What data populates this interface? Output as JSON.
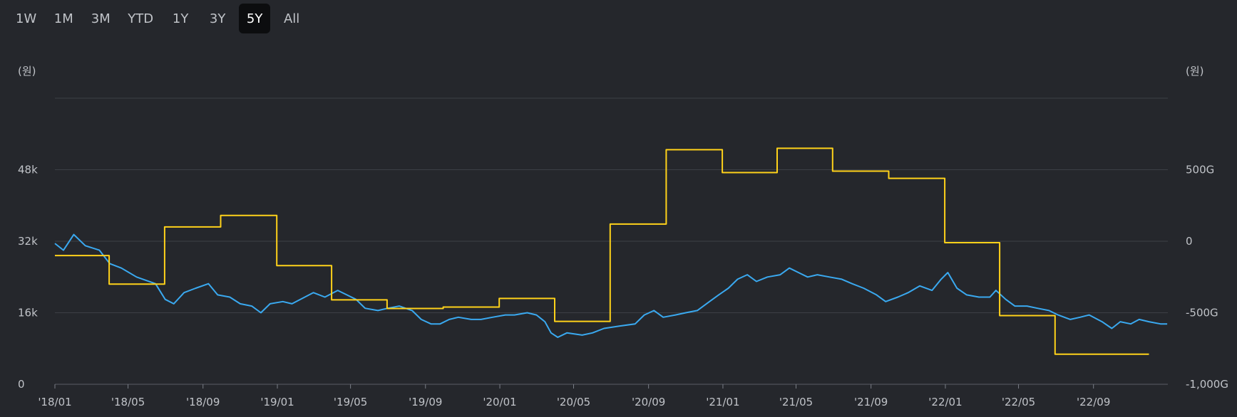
{
  "range_tabs": [
    {
      "label": "1W"
    },
    {
      "label": "1M"
    },
    {
      "label": "3M"
    },
    {
      "label": "YTD"
    },
    {
      "label": "1Y"
    },
    {
      "label": "3Y"
    },
    {
      "label": "5Y",
      "active": true
    },
    {
      "label": "All"
    }
  ],
  "colors": {
    "price": "#3aa9f0",
    "step": "#ffd21a",
    "grid": "#3d4046",
    "background": "#25272c"
  },
  "chart_data": {
    "type": "line",
    "x_tick_labels": [
      "'18/01",
      "'18/05",
      "'18/09",
      "'19/01",
      "'19/05",
      "'19/09",
      "'20/01",
      "'20/05",
      "'20/09",
      "'21/01",
      "'21/05",
      "'21/09",
      "'22/01",
      "'22/05",
      "'22/09"
    ],
    "left_axis": {
      "unit": "(원)",
      "ticks": [
        "0",
        "16k",
        "32k",
        "48k"
      ],
      "ylim": [
        0,
        64000
      ]
    },
    "right_axis": {
      "unit": "(원)",
      "ticks": [
        "-1,000G",
        "-500G",
        "0",
        "500G"
      ],
      "ylim": [
        -1000,
        1000
      ]
    },
    "grid": true,
    "series": [
      {
        "axis": "left",
        "color": "#3aa9f0",
        "points": [
          [
            "2018-01-01",
            31500
          ],
          [
            "2018-01-15",
            30000
          ],
          [
            "2018-02-01",
            33500
          ],
          [
            "2018-02-20",
            31000
          ],
          [
            "2018-03-15",
            30000
          ],
          [
            "2018-04-01",
            27000
          ],
          [
            "2018-04-20",
            26000
          ],
          [
            "2018-05-15",
            24000
          ],
          [
            "2018-06-15",
            22500
          ],
          [
            "2018-07-01",
            19000
          ],
          [
            "2018-07-15",
            18000
          ],
          [
            "2018-08-01",
            20500
          ],
          [
            "2018-08-20",
            21500
          ],
          [
            "2018-09-10",
            22500
          ],
          [
            "2018-09-25",
            20000
          ],
          [
            "2018-10-15",
            19500
          ],
          [
            "2018-11-01",
            18000
          ],
          [
            "2018-11-20",
            17500
          ],
          [
            "2018-12-05",
            16000
          ],
          [
            "2018-12-20",
            18000
          ],
          [
            "2019-01-10",
            18500
          ],
          [
            "2019-01-25",
            18000
          ],
          [
            "2019-02-15",
            19500
          ],
          [
            "2019-03-01",
            20500
          ],
          [
            "2019-03-20",
            19500
          ],
          [
            "2019-04-10",
            21000
          ],
          [
            "2019-04-25",
            20000
          ],
          [
            "2019-05-10",
            19000
          ],
          [
            "2019-05-25",
            17000
          ],
          [
            "2019-06-15",
            16500
          ],
          [
            "2019-07-01",
            17000
          ],
          [
            "2019-07-20",
            17500
          ],
          [
            "2019-08-10",
            16500
          ],
          [
            "2019-08-25",
            14500
          ],
          [
            "2019-09-10",
            13500
          ],
          [
            "2019-09-25",
            13500
          ],
          [
            "2019-10-10",
            14500
          ],
          [
            "2019-10-25",
            15000
          ],
          [
            "2019-11-15",
            14500
          ],
          [
            "2019-12-01",
            14500
          ],
          [
            "2019-12-20",
            15000
          ],
          [
            "2020-01-10",
            15500
          ],
          [
            "2020-01-25",
            15500
          ],
          [
            "2020-02-15",
            16000
          ],
          [
            "2020-03-01",
            15500
          ],
          [
            "2020-03-15",
            14000
          ],
          [
            "2020-03-25",
            11500
          ],
          [
            "2020-04-05",
            10500
          ],
          [
            "2020-04-20",
            11500
          ],
          [
            "2020-05-15",
            11000
          ],
          [
            "2020-06-01",
            11500
          ],
          [
            "2020-06-20",
            12500
          ],
          [
            "2020-07-15",
            13000
          ],
          [
            "2020-08-10",
            13500
          ],
          [
            "2020-08-25",
            15500
          ],
          [
            "2020-09-10",
            16500
          ],
          [
            "2020-09-25",
            15000
          ],
          [
            "2020-10-15",
            15500
          ],
          [
            "2020-11-01",
            16000
          ],
          [
            "2020-11-20",
            16500
          ],
          [
            "2020-12-10",
            18500
          ],
          [
            "2020-12-25",
            20000
          ],
          [
            "2021-01-10",
            21500
          ],
          [
            "2021-01-25",
            23500
          ],
          [
            "2021-02-10",
            24500
          ],
          [
            "2021-02-25",
            23000
          ],
          [
            "2021-03-15",
            24000
          ],
          [
            "2021-04-05",
            24500
          ],
          [
            "2021-04-20",
            26000
          ],
          [
            "2021-05-05",
            25000
          ],
          [
            "2021-05-20",
            24000
          ],
          [
            "2021-06-05",
            24500
          ],
          [
            "2021-06-25",
            24000
          ],
          [
            "2021-07-15",
            23500
          ],
          [
            "2021-08-01",
            22500
          ],
          [
            "2021-08-20",
            21500
          ],
          [
            "2021-09-10",
            20000
          ],
          [
            "2021-09-25",
            18500
          ],
          [
            "2021-10-15",
            19500
          ],
          [
            "2021-11-01",
            20500
          ],
          [
            "2021-11-20",
            22000
          ],
          [
            "2021-12-10",
            21000
          ],
          [
            "2021-12-25",
            23500
          ],
          [
            "2022-01-05",
            25000
          ],
          [
            "2022-01-20",
            21500
          ],
          [
            "2022-02-05",
            20000
          ],
          [
            "2022-02-25",
            19500
          ],
          [
            "2022-03-15",
            19500
          ],
          [
            "2022-03-25",
            21000
          ],
          [
            "2022-04-10",
            19000
          ],
          [
            "2022-04-25",
            17500
          ],
          [
            "2022-05-15",
            17500
          ],
          [
            "2022-06-01",
            17000
          ],
          [
            "2022-06-20",
            16500
          ],
          [
            "2022-07-05",
            15500
          ],
          [
            "2022-07-25",
            14500
          ],
          [
            "2022-08-10",
            15000
          ],
          [
            "2022-08-25",
            15500
          ],
          [
            "2022-09-15",
            14000
          ],
          [
            "2022-10-01",
            12500
          ],
          [
            "2022-10-15",
            14000
          ],
          [
            "2022-11-01",
            13500
          ],
          [
            "2022-11-15",
            14500
          ],
          [
            "2022-12-01",
            14000
          ],
          [
            "2022-12-20",
            13500
          ],
          [
            "2022-12-31",
            13500
          ]
        ]
      },
      {
        "axis": "right",
        "color": "#ffd21a",
        "shape": "step",
        "points": [
          [
            "2018-01-01",
            -100
          ],
          [
            "2018-03-31",
            -300
          ],
          [
            "2018-06-30",
            100
          ],
          [
            "2018-09-30",
            180
          ],
          [
            "2018-12-31",
            -170
          ],
          [
            "2019-03-31",
            -410
          ],
          [
            "2019-06-30",
            -470
          ],
          [
            "2019-09-30",
            -460
          ],
          [
            "2019-12-31",
            -400
          ],
          [
            "2020-03-31",
            -560
          ],
          [
            "2020-06-30",
            120
          ],
          [
            "2020-09-30",
            640
          ],
          [
            "2020-12-31",
            480
          ],
          [
            "2021-03-31",
            650
          ],
          [
            "2021-06-30",
            490
          ],
          [
            "2021-09-30",
            440
          ],
          [
            "2021-12-31",
            -10
          ],
          [
            "2022-03-31",
            -520
          ],
          [
            "2022-06-30",
            -790
          ],
          [
            "2022-09-30",
            -790
          ]
        ]
      }
    ]
  }
}
